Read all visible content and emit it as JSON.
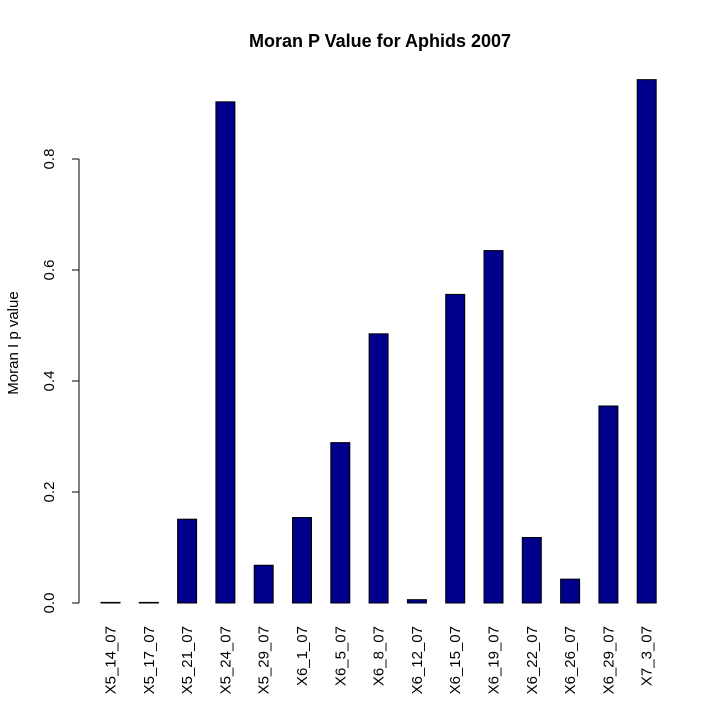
{
  "chart_data": {
    "type": "bar",
    "title": "Moran P Value for Aphids 2007",
    "xlabel": "",
    "ylabel": "Moran I p value",
    "categories": [
      "X5_14_07",
      "X5_17_07",
      "X5_21_07",
      "X5_24_07",
      "X5_29_07",
      "X6_1_07",
      "X6_5_07",
      "X6_8_07",
      "X6_12_07",
      "X6_15_07",
      "X6_19_07",
      "X6_22_07",
      "X6_26_07",
      "X6_29_07",
      "X7_3_07"
    ],
    "values": [
      0.001,
      0.001,
      0.151,
      0.903,
      0.068,
      0.154,
      0.289,
      0.485,
      0.006,
      0.556,
      0.635,
      0.118,
      0.043,
      0.355,
      0.943
    ],
    "ylim": [
      0,
      0.943
    ],
    "yticks": [
      "0.0",
      "0.2",
      "0.4",
      "0.6",
      "0.8"
    ],
    "grid": false,
    "legend": "none",
    "bar_color": "#00008B",
    "bar_border_color": "#000000"
  }
}
